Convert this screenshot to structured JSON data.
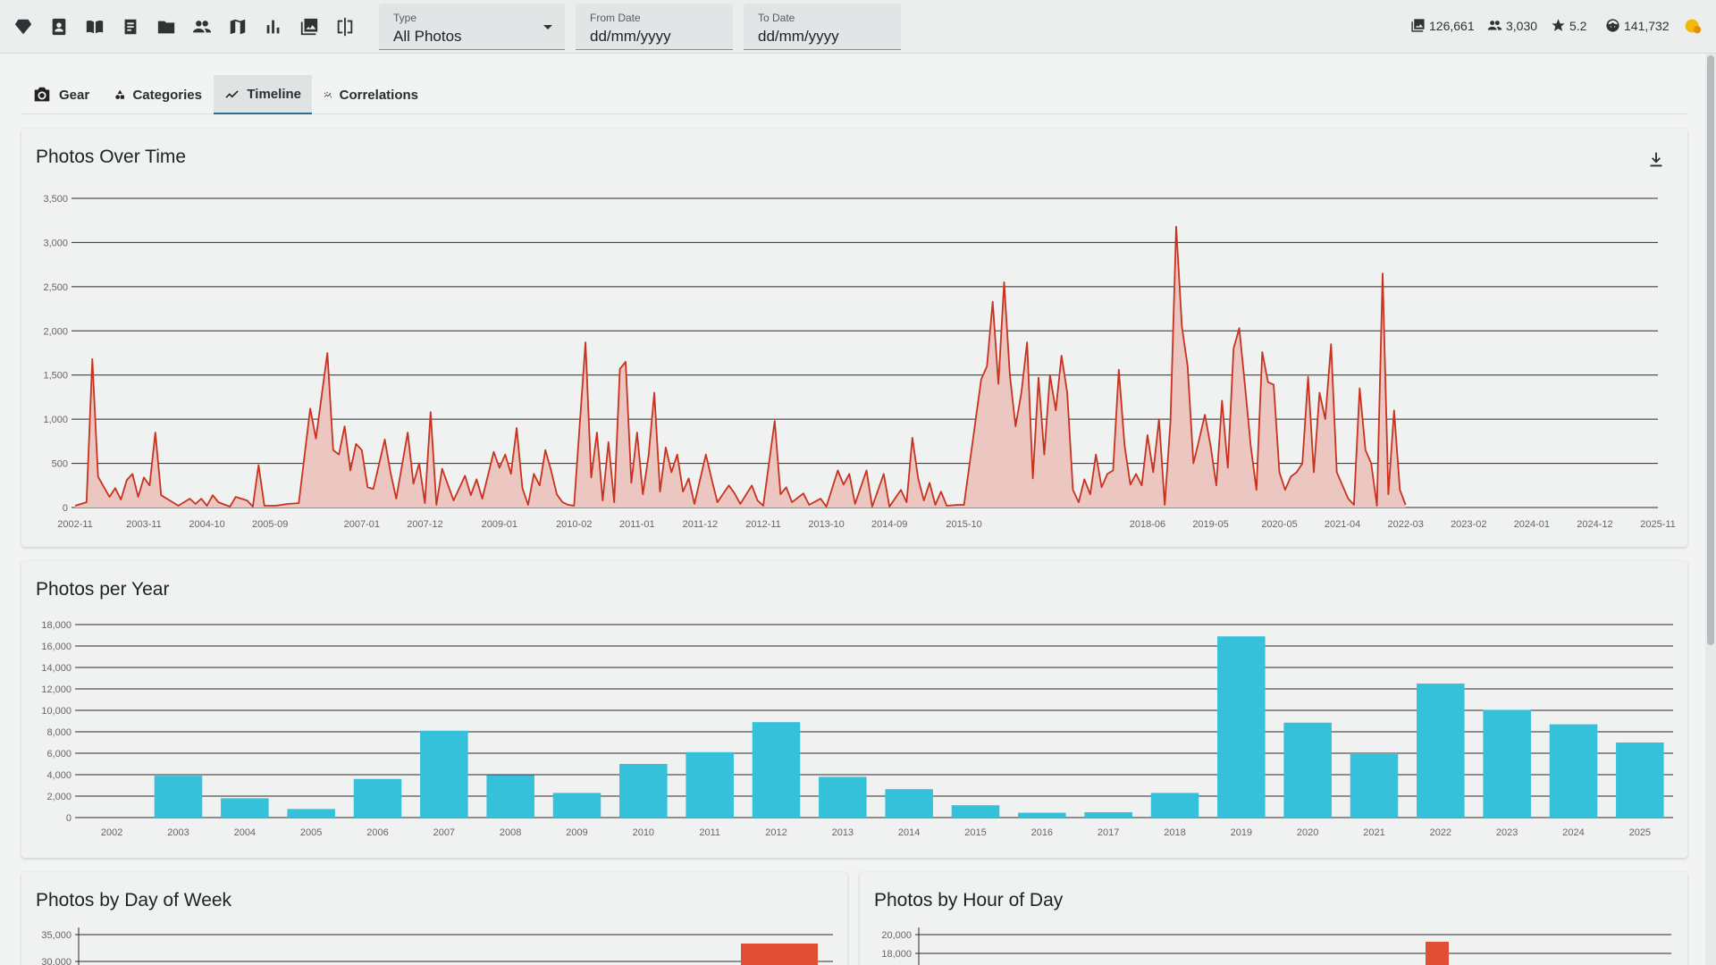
{
  "toolbar": {
    "icons": [
      "diamond-icon",
      "contact-card-icon",
      "open-book-icon",
      "document-icon",
      "folder-icon",
      "people-icon",
      "map-icon",
      "bar-chart-icon",
      "photo-library-icon",
      "compare-icon"
    ],
    "type_label": "Type",
    "type_value": "All Photos",
    "from_label": "From Date",
    "from_value": "dd/mm/yyyy",
    "to_label": "To Date",
    "to_value": "dd/mm/yyyy",
    "stats": {
      "photos": "126,661",
      "people": "3,030",
      "rating": "5.2",
      "faces": "141,732"
    }
  },
  "tabs": [
    {
      "label": "Gear",
      "icon": "camera-icon"
    },
    {
      "label": "Categories",
      "icon": "shapes-icon"
    },
    {
      "label": "Timeline",
      "icon": "trending-line-icon",
      "active": true
    },
    {
      "label": "Correlations",
      "icon": "scatter-line-icon"
    }
  ],
  "cards": {
    "timeline_title": "Photos Over Time",
    "year_title": "Photos per Year",
    "dow_title": "Photos by Day of Week",
    "hour_title": "Photos by Hour of Day"
  },
  "colors": {
    "line": "#c8321e",
    "area": "#ecc6c0",
    "bar": "#36c1db",
    "dow_bar": "#e04e33"
  },
  "chart_data": [
    {
      "type": "area",
      "title": "Photos Over Time",
      "ylim": [
        0,
        3500
      ],
      "yticks": [
        "0",
        "500",
        "1,000",
        "1,500",
        "2,000",
        "2,500",
        "3,000",
        "3,500"
      ],
      "x_tick_labels": [
        "2002-11",
        "2003-11",
        "2004-10",
        "2005-09",
        "2007-01",
        "2007-12",
        "2009-01",
        "2010-02",
        "2011-01",
        "2011-12",
        "2012-11",
        "2013-10",
        "2014-09",
        "2015-10",
        "2018-06",
        "2019-05",
        "2020-05",
        "2021-04",
        "2022-03",
        "2023-02",
        "2024-01",
        "2024-12",
        "2025-11"
      ],
      "x_range": [
        "2002-11",
        "2025-11"
      ],
      "points": [
        [
          "2002-11",
          20
        ],
        [
          "2003-01",
          60
        ],
        [
          "2003-02",
          1680
        ],
        [
          "2003-03",
          350
        ],
        [
          "2003-05",
          120
        ],
        [
          "2003-06",
          220
        ],
        [
          "2003-07",
          90
        ],
        [
          "2003-08",
          310
        ],
        [
          "2003-09",
          380
        ],
        [
          "2003-10",
          120
        ],
        [
          "2003-11",
          340
        ],
        [
          "2003-12",
          250
        ],
        [
          "2004-01",
          850
        ],
        [
          "2004-02",
          140
        ],
        [
          "2004-03",
          100
        ],
        [
          "2004-05",
          20
        ],
        [
          "2004-07",
          100
        ],
        [
          "2004-08",
          40
        ],
        [
          "2004-09",
          100
        ],
        [
          "2004-10",
          20
        ],
        [
          "2004-11",
          140
        ],
        [
          "2004-12",
          60
        ],
        [
          "2005-02",
          10
        ],
        [
          "2005-03",
          120
        ],
        [
          "2005-05",
          80
        ],
        [
          "2005-06",
          10
        ],
        [
          "2005-07",
          480
        ],
        [
          "2005-08",
          20
        ],
        [
          "2005-10",
          20
        ],
        [
          "2005-12",
          40
        ],
        [
          "2006-02",
          50
        ],
        [
          "2006-04",
          1120
        ],
        [
          "2006-05",
          780
        ],
        [
          "2006-07",
          1750
        ],
        [
          "2006-08",
          650
        ],
        [
          "2006-09",
          600
        ],
        [
          "2006-10",
          920
        ],
        [
          "2006-11",
          420
        ],
        [
          "2006-12",
          720
        ],
        [
          "2007-01",
          650
        ],
        [
          "2007-02",
          230
        ],
        [
          "2007-03",
          210
        ],
        [
          "2007-05",
          770
        ],
        [
          "2007-06",
          400
        ],
        [
          "2007-07",
          100
        ],
        [
          "2007-09",
          850
        ],
        [
          "2007-10",
          270
        ],
        [
          "2007-11",
          500
        ],
        [
          "2007-12",
          50
        ],
        [
          "2008-01",
          1080
        ],
        [
          "2008-02",
          30
        ],
        [
          "2008-03",
          440
        ],
        [
          "2008-04",
          260
        ],
        [
          "2008-05",
          80
        ],
        [
          "2008-07",
          360
        ],
        [
          "2008-08",
          140
        ],
        [
          "2008-09",
          320
        ],
        [
          "2008-10",
          100
        ],
        [
          "2008-12",
          630
        ],
        [
          "2009-01",
          450
        ],
        [
          "2009-02",
          600
        ],
        [
          "2009-03",
          380
        ],
        [
          "2009-04",
          900
        ],
        [
          "2009-05",
          220
        ],
        [
          "2009-06",
          30
        ],
        [
          "2009-07",
          380
        ],
        [
          "2009-08",
          250
        ],
        [
          "2009-09",
          650
        ],
        [
          "2009-10",
          420
        ],
        [
          "2009-11",
          150
        ],
        [
          "2009-12",
          60
        ],
        [
          "2010-01",
          30
        ],
        [
          "2010-02",
          20
        ],
        [
          "2010-04",
          1870
        ],
        [
          "2010-05",
          340
        ],
        [
          "2010-06",
          850
        ],
        [
          "2010-07",
          80
        ],
        [
          "2010-08",
          740
        ],
        [
          "2010-09",
          60
        ],
        [
          "2010-10",
          1570
        ],
        [
          "2010-11",
          1650
        ],
        [
          "2010-12",
          280
        ],
        [
          "2011-01",
          850
        ],
        [
          "2011-02",
          150
        ],
        [
          "2011-03",
          590
        ],
        [
          "2011-04",
          1300
        ],
        [
          "2011-05",
          180
        ],
        [
          "2011-06",
          680
        ],
        [
          "2011-07",
          400
        ],
        [
          "2011-08",
          600
        ],
        [
          "2011-09",
          180
        ],
        [
          "2011-10",
          330
        ],
        [
          "2011-11",
          40
        ],
        [
          "2012-01",
          600
        ],
        [
          "2012-02",
          320
        ],
        [
          "2012-03",
          60
        ],
        [
          "2012-05",
          250
        ],
        [
          "2012-06",
          160
        ],
        [
          "2012-07",
          40
        ],
        [
          "2012-09",
          250
        ],
        [
          "2012-10",
          80
        ],
        [
          "2012-11",
          20
        ],
        [
          "2013-01",
          980
        ],
        [
          "2013-02",
          150
        ],
        [
          "2013-03",
          230
        ],
        [
          "2013-04",
          60
        ],
        [
          "2013-06",
          160
        ],
        [
          "2013-07",
          30
        ],
        [
          "2013-09",
          100
        ],
        [
          "2013-10",
          10
        ],
        [
          "2013-12",
          420
        ],
        [
          "2014-01",
          260
        ],
        [
          "2014-02",
          380
        ],
        [
          "2014-03",
          40
        ],
        [
          "2014-05",
          420
        ],
        [
          "2014-06",
          10
        ],
        [
          "2014-08",
          380
        ],
        [
          "2014-09",
          10
        ],
        [
          "2014-11",
          200
        ],
        [
          "2014-12",
          60
        ],
        [
          "2015-01",
          790
        ],
        [
          "2015-02",
          330
        ],
        [
          "2015-03",
          80
        ],
        [
          "2015-04",
          280
        ],
        [
          "2015-05",
          30
        ],
        [
          "2015-06",
          180
        ],
        [
          "2015-07",
          20
        ],
        [
          "2015-09",
          30
        ],
        [
          "2015-10",
          30
        ],
        [
          "2016-01",
          1450
        ],
        [
          "2016-02",
          1600
        ],
        [
          "2016-03",
          2330
        ],
        [
          "2016-04",
          1400
        ],
        [
          "2016-05",
          2550
        ],
        [
          "2016-06",
          1500
        ],
        [
          "2016-07",
          920
        ],
        [
          "2016-08",
          1300
        ],
        [
          "2016-09",
          1870
        ],
        [
          "2016-10",
          330
        ],
        [
          "2016-11",
          1470
        ],
        [
          "2016-12",
          600
        ],
        [
          "2017-01",
          1500
        ],
        [
          "2017-02",
          1100
        ],
        [
          "2017-03",
          1720
        ],
        [
          "2017-04",
          1300
        ],
        [
          "2017-05",
          200
        ],
        [
          "2017-06",
          60
        ],
        [
          "2017-07",
          320
        ],
        [
          "2017-08",
          150
        ],
        [
          "2017-09",
          600
        ],
        [
          "2017-10",
          230
        ],
        [
          "2017-11",
          380
        ],
        [
          "2017-12",
          420
        ],
        [
          "2018-01",
          1560
        ],
        [
          "2018-02",
          700
        ],
        [
          "2018-03",
          260
        ],
        [
          "2018-04",
          380
        ],
        [
          "2018-05",
          250
        ],
        [
          "2018-06",
          820
        ],
        [
          "2018-07",
          400
        ],
        [
          "2018-08",
          1000
        ],
        [
          "2018-09",
          30
        ],
        [
          "2018-10",
          970
        ],
        [
          "2018-11",
          3180
        ],
        [
          "2018-12",
          2050
        ],
        [
          "2019-01",
          1600
        ],
        [
          "2019-02",
          500
        ],
        [
          "2019-03",
          770
        ],
        [
          "2019-04",
          1050
        ],
        [
          "2019-05",
          700
        ],
        [
          "2019-06",
          250
        ],
        [
          "2019-07",
          1210
        ],
        [
          "2019-08",
          450
        ],
        [
          "2019-09",
          1800
        ],
        [
          "2019-10",
          2030
        ],
        [
          "2019-11",
          1380
        ],
        [
          "2019-12",
          700
        ],
        [
          "2020-01",
          200
        ],
        [
          "2020-02",
          1760
        ],
        [
          "2020-03",
          1420
        ],
        [
          "2020-04",
          1390
        ],
        [
          "2020-05",
          400
        ],
        [
          "2020-06",
          200
        ],
        [
          "2020-07",
          350
        ],
        [
          "2020-08",
          400
        ],
        [
          "2020-09",
          500
        ],
        [
          "2020-10",
          1480
        ],
        [
          "2020-11",
          400
        ],
        [
          "2020-12",
          1300
        ],
        [
          "2021-01",
          1000
        ],
        [
          "2021-02",
          1850
        ],
        [
          "2021-03",
          400
        ],
        [
          "2021-04",
          250
        ],
        [
          "2021-05",
          100
        ],
        [
          "2021-06",
          30
        ],
        [
          "2021-07",
          1350
        ],
        [
          "2021-08",
          650
        ],
        [
          "2021-09",
          500
        ],
        [
          "2021-10",
          20
        ],
        [
          "2021-11",
          2650
        ],
        [
          "2021-12",
          150
        ],
        [
          "2022-01",
          1100
        ],
        [
          "2022-02",
          200
        ],
        [
          "2022-03",
          30
        ]
      ]
    },
    {
      "type": "bar",
      "title": "Photos per Year",
      "ylim": [
        0,
        18000
      ],
      "yticks": [
        "0",
        "2,000",
        "4,000",
        "6,000",
        "8,000",
        "10,000",
        "12,000",
        "14,000",
        "16,000",
        "18,000"
      ],
      "categories": [
        "2002",
        "2003",
        "2004",
        "2005",
        "2006",
        "2007",
        "2008",
        "2009",
        "2010",
        "2011",
        "2012",
        "2013",
        "2014",
        "2015",
        "2016",
        "2017",
        "2018",
        "2019",
        "2020",
        "2021",
        "2022",
        "2023",
        "2024",
        "2025"
      ],
      "values": [
        0,
        3900,
        1800,
        800,
        3600,
        8100,
        3950,
        2300,
        5000,
        6100,
        8900,
        3800,
        2650,
        1150,
        450,
        500,
        2300,
        16900,
        8850,
        6000,
        12500,
        10050,
        8700,
        7000
      ]
    },
    {
      "type": "bar",
      "title": "Photos by Day of Week",
      "yticks_visible": [
        "35,000",
        "30,000"
      ],
      "note": "partially visible"
    },
    {
      "type": "bar",
      "title": "Photos by Hour of Day",
      "yticks_visible": [
        "20,000",
        "18,000"
      ],
      "note": "partially visible"
    }
  ]
}
